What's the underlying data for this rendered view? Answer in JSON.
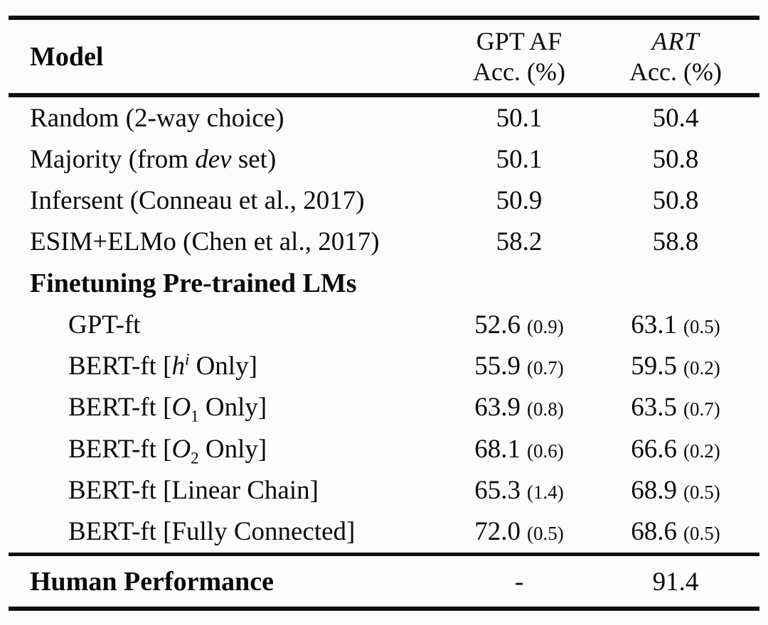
{
  "header": {
    "model_label": "Model",
    "col_gpt_af": {
      "line1": "GPT AF",
      "line2": "Acc. (%)"
    },
    "col_art": {
      "line1": "ART",
      "line2": "Acc. (%)"
    }
  },
  "rows": [
    {
      "label": "Random (2-way choice)",
      "gpt_af": "50.1",
      "art": "50.4"
    },
    {
      "label_pre": "Majority (from ",
      "label_italic": "dev",
      "label_post": " set)",
      "gpt_af": "50.1",
      "art": "50.8"
    },
    {
      "label": "Infersent (Conneau et al., 2017)",
      "gpt_af": "50.9",
      "art": "50.8"
    },
    {
      "label": "ESIM+ELMo (Chen et al., 2017)",
      "gpt_af": "58.2",
      "art": "58.8"
    },
    {
      "label": "Finetuning Pre-trained LMs"
    },
    {
      "label": "GPT-ft",
      "gpt_af": "52.6",
      "gpt_af_std": "(0.9)",
      "art": "63.1",
      "art_std": "(0.5)"
    },
    {
      "label_pre": "BERT-ft [",
      "label_var": "h",
      "label_sup": "i",
      "label_post": " Only]",
      "gpt_af": "55.9",
      "gpt_af_std": "(0.7)",
      "art": "59.5",
      "art_std": "(0.2)"
    },
    {
      "label_pre": "BERT-ft [",
      "label_var": "O",
      "label_sub": "1",
      "label_post": " Only]",
      "gpt_af": "63.9",
      "gpt_af_std": "(0.8)",
      "art": "63.5",
      "art_std": "(0.7)"
    },
    {
      "label_pre": "BERT-ft [",
      "label_var": "O",
      "label_sub": "2",
      "label_post": " Only]",
      "gpt_af": "68.1",
      "gpt_af_std": "(0.6)",
      "art": "66.6",
      "art_std": "(0.2)"
    },
    {
      "label": "BERT-ft [Linear Chain]",
      "gpt_af": "65.3",
      "gpt_af_std": "(1.4)",
      "art": "68.9",
      "art_std": "(0.5)"
    },
    {
      "label": "BERT-ft [Fully Connected]",
      "gpt_af": "72.0",
      "gpt_af_std": "(0.5)",
      "art": "68.6",
      "art_std": "(0.5)"
    }
  ],
  "footer": {
    "label": "Human Performance",
    "gpt_af": "-",
    "art": "91.4"
  }
}
